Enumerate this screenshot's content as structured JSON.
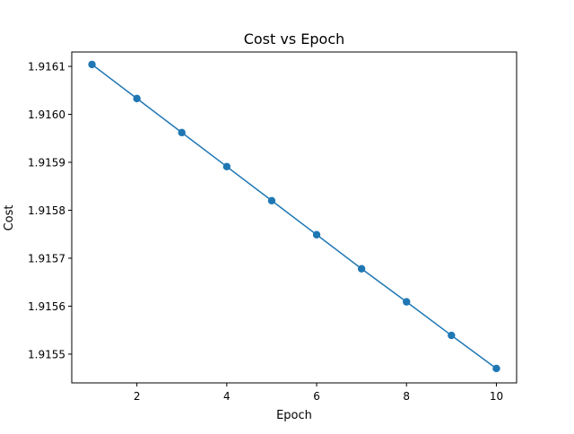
{
  "chart_data": {
    "type": "line",
    "title": "Cost vs Epoch",
    "xlabel": "Epoch",
    "ylabel": "Cost",
    "xlim": [
      0.55,
      10.45
    ],
    "ylim": [
      1.91544,
      1.91613
    ],
    "xticks": [
      2,
      4,
      6,
      8,
      10
    ],
    "xtick_labels": [
      "2",
      "4",
      "6",
      "8",
      "10"
    ],
    "yticks": [
      1.9155,
      1.9156,
      1.9157,
      1.9158,
      1.9159,
      1.916,
      1.9161
    ],
    "ytick_labels": [
      "1.9155",
      "1.9156",
      "1.9157",
      "1.9158",
      "1.9159",
      "1.9160",
      "1.9161"
    ],
    "grid": false,
    "legend": "none",
    "series": [
      {
        "color": "#1f77b4",
        "marker": "circle",
        "x": [
          1,
          2,
          3,
          4,
          5,
          6,
          7,
          8,
          9,
          10
        ],
        "y": [
          1.916104,
          1.916033,
          1.915962,
          1.915891,
          1.91582,
          1.915749,
          1.915678,
          1.915609,
          1.915539,
          1.91547
        ]
      }
    ]
  }
}
